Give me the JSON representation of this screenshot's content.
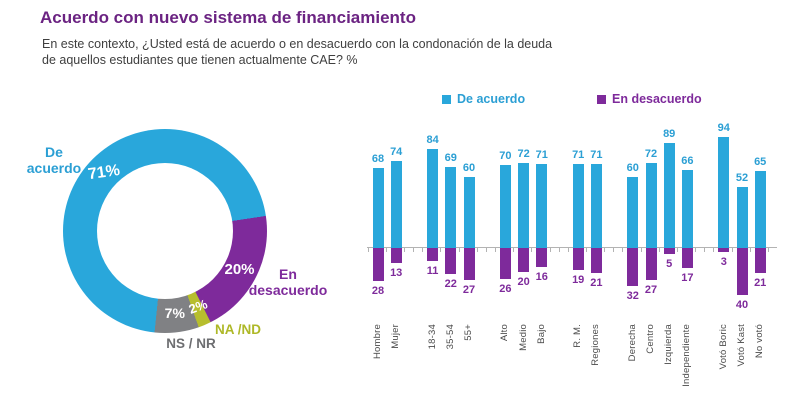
{
  "title": "Acuerdo con nuevo sistema de financiamiento",
  "subtitle": "En este contexto, ¿Usted está de acuerdo o en desacuerdo con la condonación de la deuda\nde aquellos estudiantes que tienen actualmente CAE? %",
  "colors": {
    "blue": "#29A7DB",
    "purple": "#7E2A9B",
    "olive": "#B7BE2D",
    "gray": "#808184",
    "title_purple": "#6B2382",
    "blue_text": "#2B9FD4",
    "gray_text": "#6D6E71",
    "olive_text": "#AEB827",
    "axis": "#B3B3B3"
  },
  "legend": [
    {
      "label": "De acuerdo",
      "color": "#29A7DB"
    },
    {
      "label": "En desacuerdo",
      "color": "#7E2A9B"
    }
  ],
  "chart_data": [
    {
      "type": "pie",
      "subtype": "donut",
      "start_angle_deg": 185.9,
      "slices": [
        {
          "label": "De acuerdo",
          "value": 71,
          "color": "#29A7DB"
        },
        {
          "label": "En desacuerdo",
          "value": 20,
          "color": "#7E2A9B"
        },
        {
          "label": "NA /ND",
          "value": 2,
          "color": "#B7BE2D"
        },
        {
          "label": "NS / NR",
          "value": 7,
          "color": "#808184"
        }
      ]
    },
    {
      "type": "bar",
      "subtype": "diverging-grouped",
      "groups": [
        {
          "categories": [
            "Hombre",
            "Mujer"
          ]
        },
        {
          "categories": [
            "18-34",
            "35-54",
            "55+"
          ]
        },
        {
          "categories": [
            "Alto",
            "Medio",
            "Bajo"
          ]
        },
        {
          "categories": [
            "R. M.",
            "Regiones"
          ]
        },
        {
          "categories": [
            "Derecha",
            "Centro",
            "Izquierda",
            "Independiente"
          ]
        },
        {
          "categories": [
            "Votó Boric",
            "Votó Kast",
            "No votó"
          ]
        }
      ],
      "series": [
        {
          "name": "De acuerdo",
          "direction": "up",
          "color": "#29A7DB",
          "values": [
            68,
            74,
            84,
            69,
            60,
            70,
            72,
            71,
            71,
            71,
            60,
            72,
            89,
            66,
            94,
            52,
            65
          ]
        },
        {
          "name": "En desacuerdo",
          "direction": "down",
          "color": "#7E2A9B",
          "values": [
            28,
            13,
            11,
            22,
            27,
            26,
            20,
            16,
            19,
            21,
            32,
            27,
            5,
            17,
            3,
            40,
            21
          ]
        }
      ]
    }
  ]
}
